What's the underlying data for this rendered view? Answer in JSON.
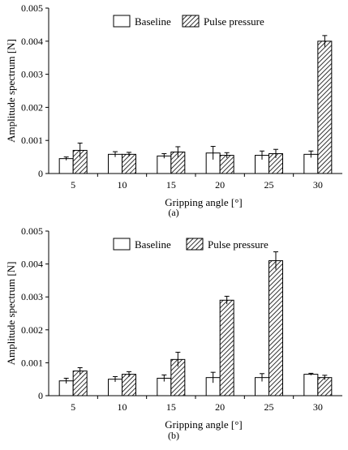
{
  "chart_data": [
    {
      "type": "bar",
      "panel_label": "(a)",
      "categories": [
        "5",
        "10",
        "15",
        "20",
        "25",
        "30"
      ],
      "series": [
        {
          "name": "Baseline",
          "values": [
            0.00045,
            0.00058,
            0.00053,
            0.00062,
            0.00055,
            0.00058
          ],
          "errors": [
            5e-05,
            8e-05,
            7e-05,
            0.0002,
            0.00013,
            0.0001
          ]
        },
        {
          "name": "Pulse pressure",
          "values": [
            0.0007,
            0.00058,
            0.00065,
            0.00055,
            0.0006,
            0.004
          ],
          "errors": [
            0.00022,
            6e-05,
            0.00016,
            8e-05,
            0.00013,
            0.00017
          ]
        }
      ],
      "ylim": [
        0,
        0.005
      ],
      "yticks": [
        "0",
        "0.001",
        "0.002",
        "0.003",
        "0.004",
        "0.005"
      ],
      "ylabel": "Amplitude spectrum [N]",
      "xlabel": "Gripping angle [°]",
      "legend_position": "top-center",
      "grid": false
    },
    {
      "type": "bar",
      "panel_label": "(b)",
      "categories": [
        "5",
        "10",
        "15",
        "20",
        "25",
        "30"
      ],
      "series": [
        {
          "name": "Baseline",
          "values": [
            0.00045,
            0.0005,
            0.00053,
            0.00055,
            0.00055,
            0.00065
          ],
          "errors": [
            8e-05,
            8e-05,
            0.0001,
            0.00016,
            0.00012,
            3e-05
          ]
        },
        {
          "name": "Pulse pressure",
          "values": [
            0.00075,
            0.00065,
            0.0011,
            0.0029,
            0.0041,
            0.00055
          ],
          "errors": [
            0.0001,
            8e-05,
            0.00022,
            0.00012,
            0.00027,
            7e-05
          ]
        }
      ],
      "ylim": [
        0,
        0.005
      ],
      "yticks": [
        "0",
        "0.001",
        "0.002",
        "0.003",
        "0.004",
        "0.005"
      ],
      "ylabel": "Amplitude spectrum [N]",
      "xlabel": "Gripping angle [°]",
      "legend_position": "top-center",
      "grid": false
    }
  ]
}
